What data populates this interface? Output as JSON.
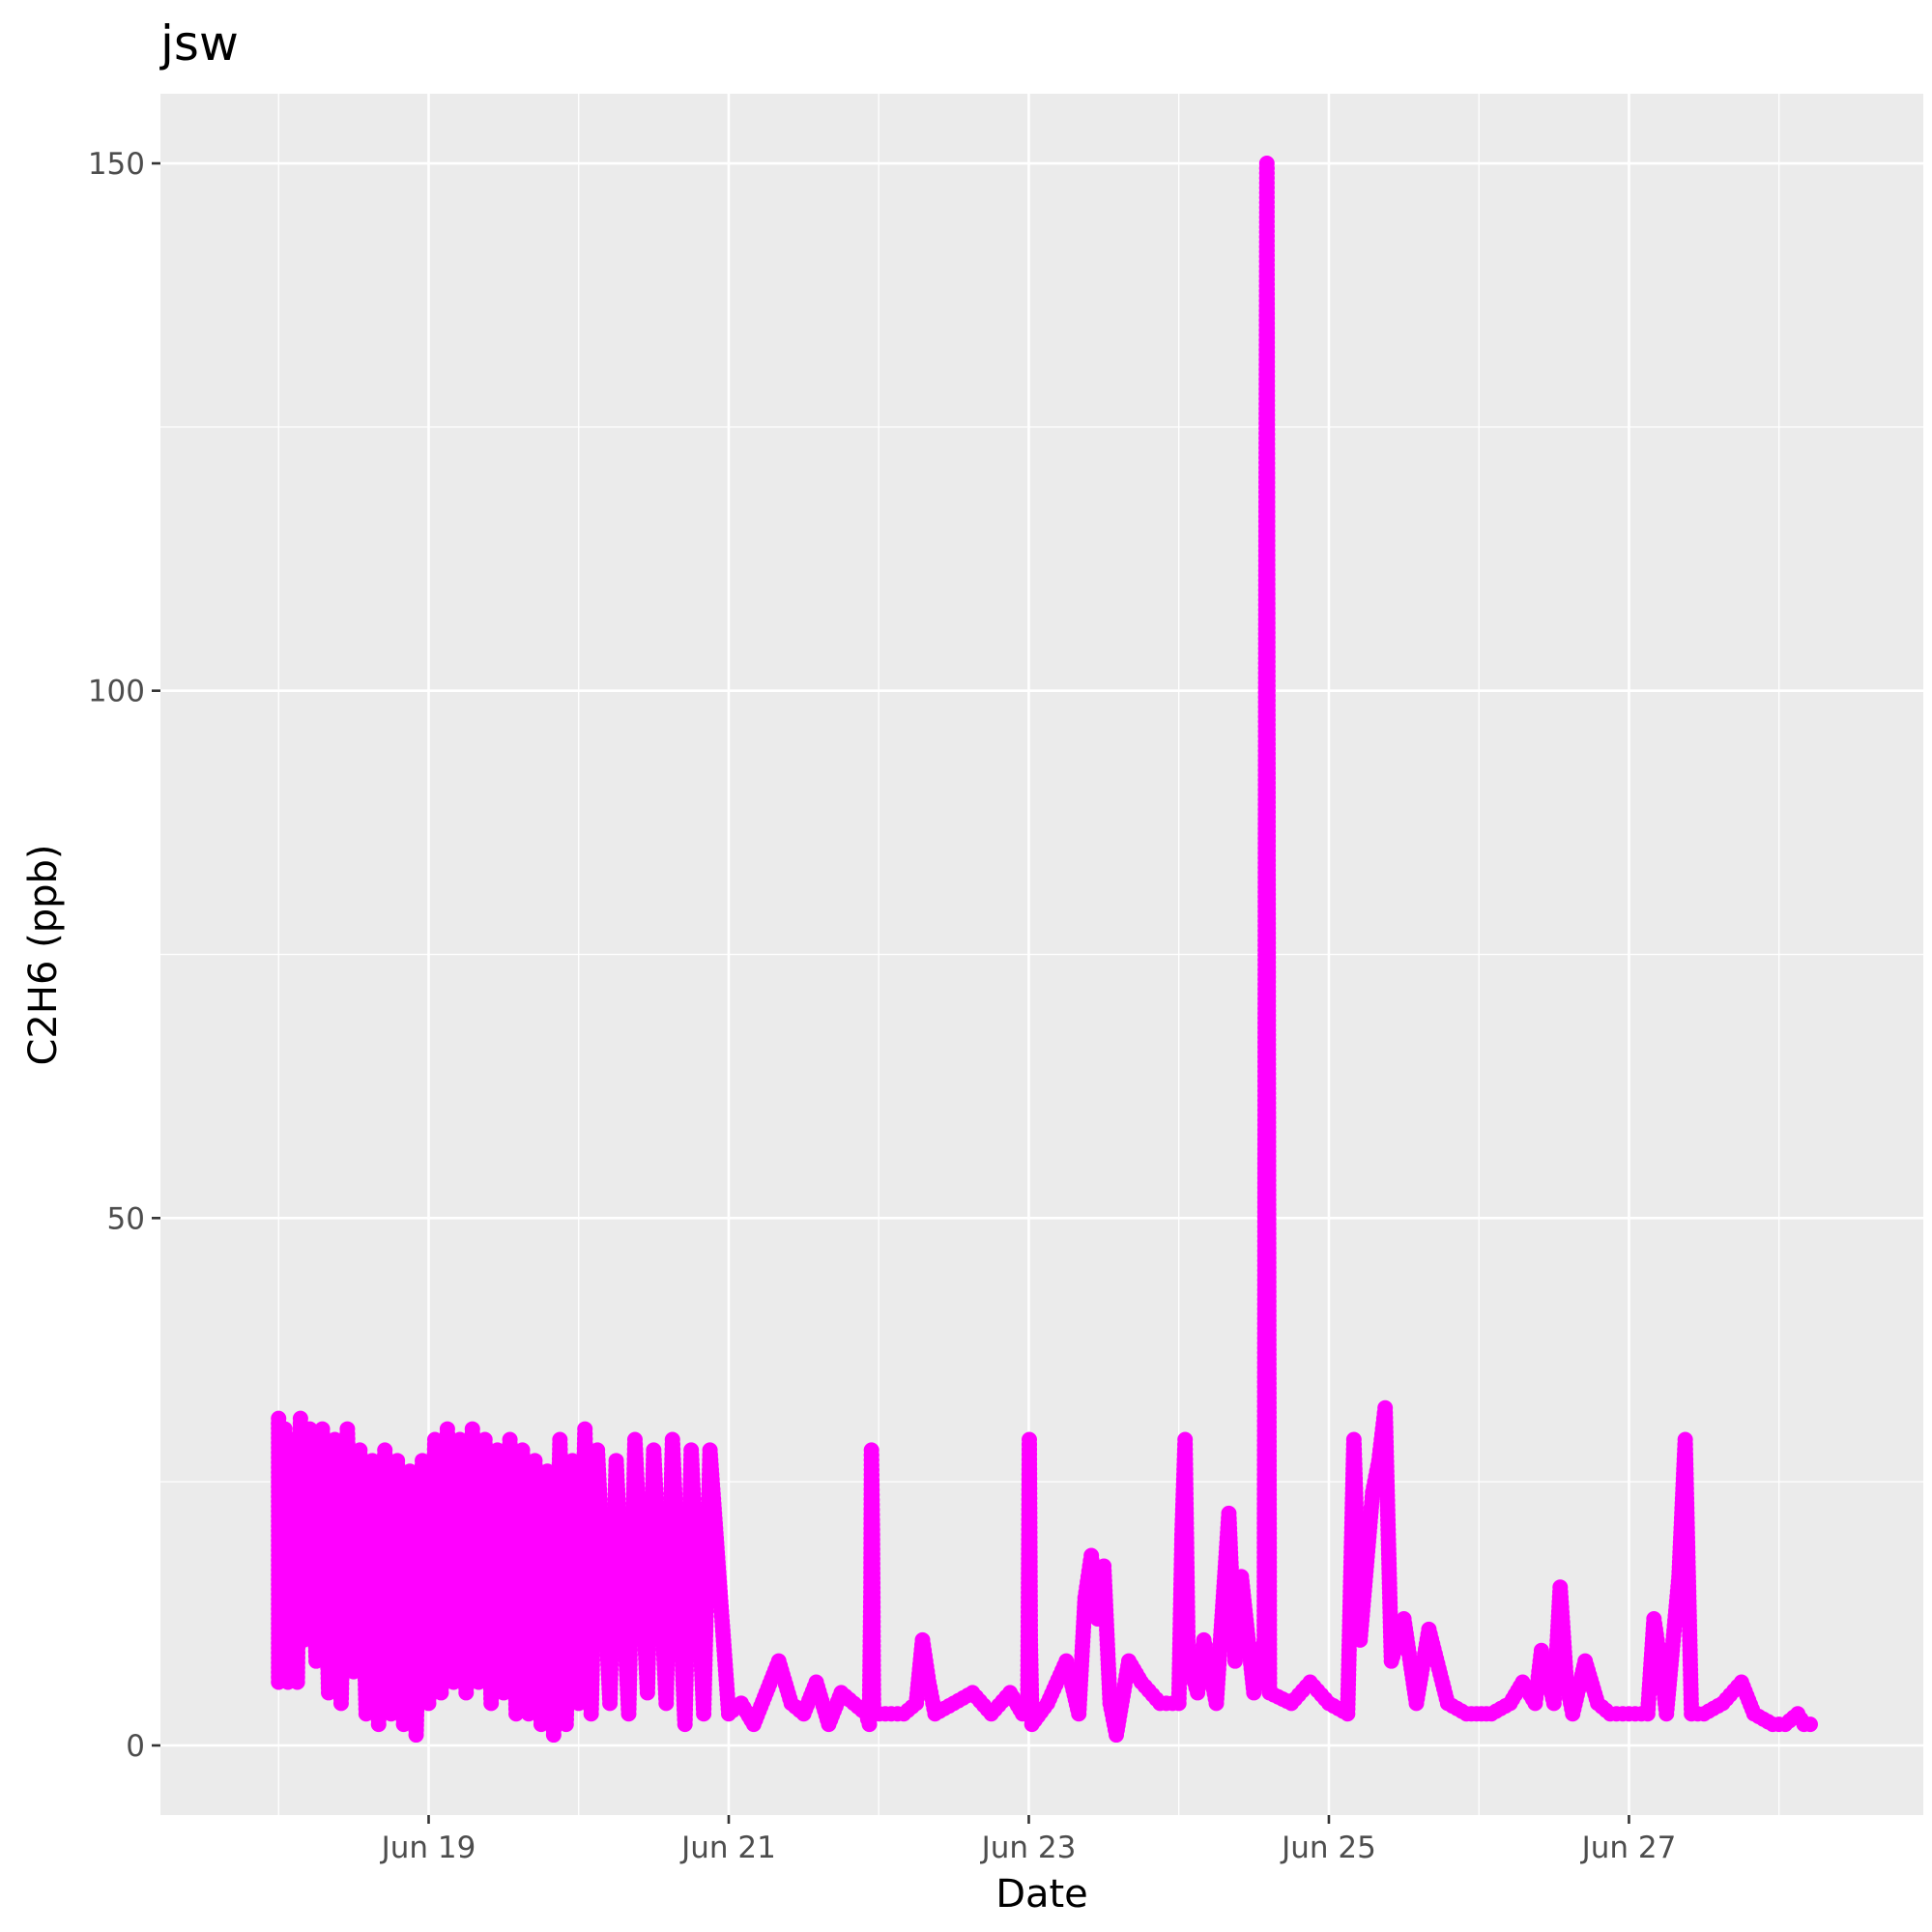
{
  "chart_data": {
    "type": "scatter",
    "title": "jsw",
    "xlabel": "Date",
    "ylabel": "C2H6 (ppb)",
    "x_axis_type": "date",
    "year": 2021,
    "xlim": [
      "2021-06-17T05:06",
      "2021-06-28T23:05"
    ],
    "ylim": [
      -6.6,
      156.6
    ],
    "x_ticks": [
      {
        "date": "2021-06-19",
        "label": "Jun 19"
      },
      {
        "date": "2021-06-21",
        "label": "Jun 21"
      },
      {
        "date": "2021-06-23",
        "label": "Jun 23"
      },
      {
        "date": "2021-06-25",
        "label": "Jun 25"
      },
      {
        "date": "2021-06-27",
        "label": "Jun 27"
      }
    ],
    "x_minor_breaks": [
      "2021-06-18",
      "2021-06-20",
      "2021-06-22",
      "2021-06-24",
      "2021-06-26",
      "2021-06-28"
    ],
    "y_ticks": [
      0,
      50,
      100,
      150
    ],
    "y_minor_breaks": [
      25,
      75,
      125
    ],
    "grid": true,
    "legend": "none",
    "colors": {
      "points": "#ff00ff",
      "panel": "#ebebeb",
      "grid": "#ffffff",
      "tick_text": "#4d4d4d"
    },
    "series": [
      {
        "color": "#ff00ff",
        "points": [
          [
            "2021-06-18T00:00",
            6
          ],
          [
            "2021-06-18T00:00",
            31
          ],
          [
            "2021-06-18T00:30",
            8
          ],
          [
            "2021-06-18T01:00",
            30
          ],
          [
            "2021-06-18T01:30",
            6
          ],
          [
            "2021-06-18T02:00",
            29
          ],
          [
            "2021-06-18T03:00",
            6
          ],
          [
            "2021-06-18T03:30",
            31
          ],
          [
            "2021-06-18T04:00",
            10
          ],
          [
            "2021-06-18T05:00",
            30
          ],
          [
            "2021-06-18T06:00",
            8
          ],
          [
            "2021-06-18T07:00",
            30
          ],
          [
            "2021-06-18T08:00",
            5
          ],
          [
            "2021-06-18T09:00",
            29
          ],
          [
            "2021-06-18T10:00",
            4
          ],
          [
            "2021-06-18T11:00",
            30
          ],
          [
            "2021-06-18T12:00",
            7
          ],
          [
            "2021-06-18T13:00",
            28
          ],
          [
            "2021-06-18T14:00",
            3
          ],
          [
            "2021-06-18T15:00",
            27
          ],
          [
            "2021-06-18T16:00",
            2
          ],
          [
            "2021-06-18T17:00",
            28
          ],
          [
            "2021-06-18T18:00",
            3
          ],
          [
            "2021-06-18T19:00",
            27
          ],
          [
            "2021-06-18T20:00",
            2
          ],
          [
            "2021-06-18T21:00",
            26
          ],
          [
            "2021-06-18T22:00",
            1
          ],
          [
            "2021-06-18T23:00",
            27
          ],
          [
            "2021-06-19T00:00",
            4
          ],
          [
            "2021-06-19T01:00",
            29
          ],
          [
            "2021-06-19T02:00",
            5
          ],
          [
            "2021-06-19T03:00",
            30
          ],
          [
            "2021-06-19T04:00",
            6
          ],
          [
            "2021-06-19T05:00",
            29
          ],
          [
            "2021-06-19T06:00",
            5
          ],
          [
            "2021-06-19T07:00",
            30
          ],
          [
            "2021-06-19T08:00",
            6
          ],
          [
            "2021-06-19T09:00",
            29
          ],
          [
            "2021-06-19T10:00",
            4
          ],
          [
            "2021-06-19T11:00",
            28
          ],
          [
            "2021-06-19T12:00",
            5
          ],
          [
            "2021-06-19T13:00",
            29
          ],
          [
            "2021-06-19T14:00",
            3
          ],
          [
            "2021-06-19T15:00",
            28
          ],
          [
            "2021-06-19T16:00",
            3
          ],
          [
            "2021-06-19T17:00",
            27
          ],
          [
            "2021-06-19T18:00",
            2
          ],
          [
            "2021-06-19T19:00",
            26
          ],
          [
            "2021-06-19T20:00",
            1
          ],
          [
            "2021-06-19T21:00",
            29
          ],
          [
            "2021-06-19T22:00",
            2
          ],
          [
            "2021-06-19T23:00",
            27
          ],
          [
            "2021-06-20T00:00",
            4
          ],
          [
            "2021-06-20T01:00",
            30
          ],
          [
            "2021-06-20T02:00",
            3
          ],
          [
            "2021-06-20T03:00",
            28
          ],
          [
            "2021-06-20T05:00",
            4
          ],
          [
            "2021-06-20T06:00",
            27
          ],
          [
            "2021-06-20T08:00",
            3
          ],
          [
            "2021-06-20T09:00",
            29
          ],
          [
            "2021-06-20T11:00",
            5
          ],
          [
            "2021-06-20T12:00",
            28
          ],
          [
            "2021-06-20T14:00",
            4
          ],
          [
            "2021-06-20T15:00",
            29
          ],
          [
            "2021-06-20T17:00",
            2
          ],
          [
            "2021-06-20T18:00",
            28
          ],
          [
            "2021-06-20T20:00",
            3
          ],
          [
            "2021-06-20T21:00",
            28
          ],
          [
            "2021-06-21T00:00",
            3
          ],
          [
            "2021-06-21T02:00",
            4
          ],
          [
            "2021-06-21T04:00",
            2
          ],
          [
            "2021-06-21T06:00",
            5
          ],
          [
            "2021-06-21T08:00",
            8
          ],
          [
            "2021-06-21T10:00",
            4
          ],
          [
            "2021-06-21T12:00",
            3
          ],
          [
            "2021-06-21T14:00",
            6
          ],
          [
            "2021-06-21T16:00",
            2
          ],
          [
            "2021-06-21T18:00",
            5
          ],
          [
            "2021-06-21T20:00",
            4
          ],
          [
            "2021-06-21T22:00",
            3
          ],
          [
            "2021-06-21T22:30",
            2
          ],
          [
            "2021-06-21T22:45",
            15
          ],
          [
            "2021-06-21T22:50",
            28
          ],
          [
            "2021-06-21T23:00",
            20
          ],
          [
            "2021-06-21T23:10",
            3
          ],
          [
            "2021-06-22T02:00",
            3
          ],
          [
            "2021-06-22T04:00",
            3
          ],
          [
            "2021-06-22T06:00",
            4
          ],
          [
            "2021-06-22T07:00",
            10
          ],
          [
            "2021-06-22T08:00",
            6
          ],
          [
            "2021-06-22T09:00",
            3
          ],
          [
            "2021-06-22T12:00",
            4
          ],
          [
            "2021-06-22T15:00",
            5
          ],
          [
            "2021-06-22T18:00",
            3
          ],
          [
            "2021-06-22T21:00",
            5
          ],
          [
            "2021-06-22T23:00",
            3
          ],
          [
            "2021-06-22T23:50",
            3
          ],
          [
            "2021-06-23T00:00",
            20
          ],
          [
            "2021-06-23T00:05",
            29
          ],
          [
            "2021-06-23T00:15",
            10
          ],
          [
            "2021-06-23T00:30",
            2
          ],
          [
            "2021-06-23T03:00",
            4
          ],
          [
            "2021-06-23T06:00",
            8
          ],
          [
            "2021-06-23T08:00",
            3
          ],
          [
            "2021-06-23T09:00",
            14
          ],
          [
            "2021-06-23T10:00",
            18
          ],
          [
            "2021-06-23T11:00",
            12
          ],
          [
            "2021-06-23T12:00",
            17
          ],
          [
            "2021-06-23T13:00",
            4
          ],
          [
            "2021-06-23T14:00",
            1
          ],
          [
            "2021-06-23T16:00",
            8
          ],
          [
            "2021-06-23T18:00",
            6
          ],
          [
            "2021-06-23T21:00",
            4
          ],
          [
            "2021-06-24T00:00",
            4
          ],
          [
            "2021-06-24T00:30",
            20
          ],
          [
            "2021-06-24T01:00",
            29
          ],
          [
            "2021-06-24T01:30",
            8
          ],
          [
            "2021-06-24T03:00",
            5
          ],
          [
            "2021-06-24T04:00",
            10
          ],
          [
            "2021-06-24T06:00",
            4
          ],
          [
            "2021-06-24T08:00",
            22
          ],
          [
            "2021-06-24T09:00",
            8
          ],
          [
            "2021-06-24T10:00",
            16
          ],
          [
            "2021-06-24T12:00",
            5
          ],
          [
            "2021-06-24T13:40",
            10
          ],
          [
            "2021-06-24T13:45",
            40
          ],
          [
            "2021-06-24T13:50",
            80
          ],
          [
            "2021-06-24T13:55",
            110
          ],
          [
            "2021-06-24T14:00",
            130
          ],
          [
            "2021-06-24T14:05",
            150
          ],
          [
            "2021-06-24T14:15",
            100
          ],
          [
            "2021-06-24T14:20",
            60
          ],
          [
            "2021-06-24T14:30",
            5
          ],
          [
            "2021-06-24T18:00",
            4
          ],
          [
            "2021-06-24T21:00",
            6
          ],
          [
            "2021-06-25T00:00",
            4
          ],
          [
            "2021-06-25T03:00",
            3
          ],
          [
            "2021-06-25T04:00",
            29
          ],
          [
            "2021-06-25T05:00",
            10
          ],
          [
            "2021-06-25T07:00",
            24
          ],
          [
            "2021-06-25T08:00",
            27
          ],
          [
            "2021-06-25T09:00",
            32
          ],
          [
            "2021-06-25T10:00",
            8
          ],
          [
            "2021-06-25T12:00",
            12
          ],
          [
            "2021-06-25T14:00",
            4
          ],
          [
            "2021-06-25T16:00",
            11
          ],
          [
            "2021-06-25T19:00",
            4
          ],
          [
            "2021-06-25T22:00",
            3
          ],
          [
            "2021-06-26T02:00",
            3
          ],
          [
            "2021-06-26T05:00",
            4
          ],
          [
            "2021-06-26T07:00",
            6
          ],
          [
            "2021-06-26T09:00",
            4
          ],
          [
            "2021-06-26T10:00",
            9
          ],
          [
            "2021-06-26T12:00",
            4
          ],
          [
            "2021-06-26T13:00",
            15
          ],
          [
            "2021-06-26T14:00",
            6
          ],
          [
            "2021-06-26T15:00",
            3
          ],
          [
            "2021-06-26T17:00",
            8
          ],
          [
            "2021-06-26T19:00",
            4
          ],
          [
            "2021-06-26T21:00",
            3
          ],
          [
            "2021-06-27T00:00",
            3
          ],
          [
            "2021-06-27T03:00",
            3
          ],
          [
            "2021-06-27T04:00",
            12
          ],
          [
            "2021-06-27T05:00",
            8
          ],
          [
            "2021-06-27T06:00",
            3
          ],
          [
            "2021-06-27T08:00",
            16
          ],
          [
            "2021-06-27T09:00",
            29
          ],
          [
            "2021-06-27T10:00",
            3
          ],
          [
            "2021-06-27T12:00",
            3
          ],
          [
            "2021-06-27T15:00",
            4
          ],
          [
            "2021-06-27T18:00",
            6
          ],
          [
            "2021-06-27T20:00",
            3
          ],
          [
            "2021-06-27T23:00",
            2
          ],
          [
            "2021-06-28T01:00",
            2
          ],
          [
            "2021-06-28T03:00",
            3
          ],
          [
            "2021-06-28T04:00",
            2
          ],
          [
            "2021-06-28T05:00",
            2
          ]
        ]
      }
    ]
  }
}
